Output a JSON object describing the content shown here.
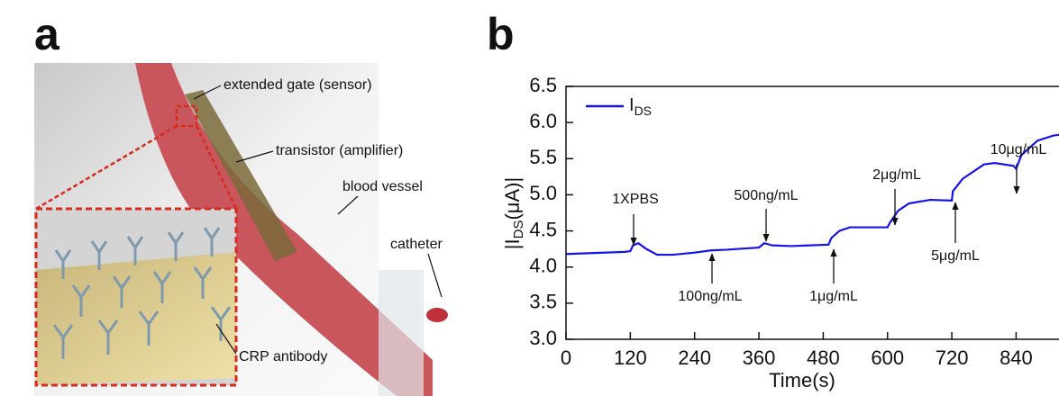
{
  "panel_labels": [
    "a",
    "b"
  ],
  "illustration": {
    "labels": [
      "extended gate (sensor)",
      "transistor (amplifier)",
      "blood vessel",
      "catheter",
      "CRP antibody"
    ]
  },
  "chart_data": {
    "type": "line",
    "xlabel": "Time(s)",
    "ylabel": {
      "main": "|I",
      "sub": "DS",
      "rest": "(μA)|"
    },
    "x": [
      0,
      110,
      120,
      125,
      135,
      150,
      170,
      200,
      240,
      270,
      300,
      360,
      370,
      385,
      420,
      490,
      495,
      510,
      530,
      600,
      605,
      620,
      640,
      680,
      720,
      722,
      740,
      780,
      800,
      835,
      840,
      850,
      880,
      910,
      920
    ],
    "series": [
      {
        "name": {
          "main": "I",
          "sub": "DS"
        },
        "color": "#1414e6",
        "values": [
          4.18,
          4.21,
          4.22,
          4.3,
          4.33,
          4.25,
          4.17,
          4.17,
          4.2,
          4.23,
          4.24,
          4.27,
          4.33,
          4.3,
          4.29,
          4.31,
          4.4,
          4.5,
          4.55,
          4.55,
          4.62,
          4.78,
          4.88,
          4.93,
          4.92,
          5.05,
          5.22,
          5.42,
          5.44,
          5.4,
          5.36,
          5.55,
          5.75,
          5.82,
          5.83
        ]
      }
    ],
    "annotations": [
      "1XPBS",
      "100ng/mL",
      "500ng/mL",
      "1μg/mL",
      "2μg/mL",
      "5μg/mL",
      "10μg/mL"
    ],
    "xlim": [
      0,
      920
    ],
    "xticks": [
      0,
      120,
      240,
      360,
      480,
      600,
      720,
      840
    ],
    "ylim": [
      3.0,
      6.5
    ],
    "yticks": [
      {
        "value": 3.0,
        "label": "3.0"
      },
      {
        "value": 3.5,
        "label": "3.5"
      },
      {
        "value": 4.0,
        "label": "4.0"
      },
      {
        "value": 4.5,
        "label": "4.5"
      },
      {
        "value": 5.0,
        "label": "5.0"
      },
      {
        "value": 5.5,
        "label": "5.5"
      },
      {
        "value": 6.0,
        "label": "6.0"
      },
      {
        "value": 6.5,
        "label": "6.5"
      }
    ],
    "legend": "upper left",
    "grid": false
  }
}
